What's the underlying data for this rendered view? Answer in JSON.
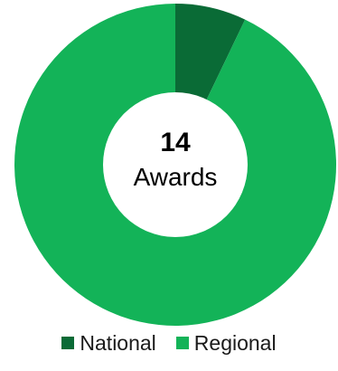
{
  "chart_data": {
    "type": "pie",
    "variant": "donut",
    "categories": [
      "National",
      "Regional"
    ],
    "values": [
      1,
      13
    ],
    "colors": [
      "#0a6b36",
      "#13b358"
    ],
    "center": {
      "number": "14",
      "label": "Awards"
    },
    "legend": {
      "placement": "bottom",
      "entries": [
        "National",
        "Regional"
      ]
    }
  }
}
